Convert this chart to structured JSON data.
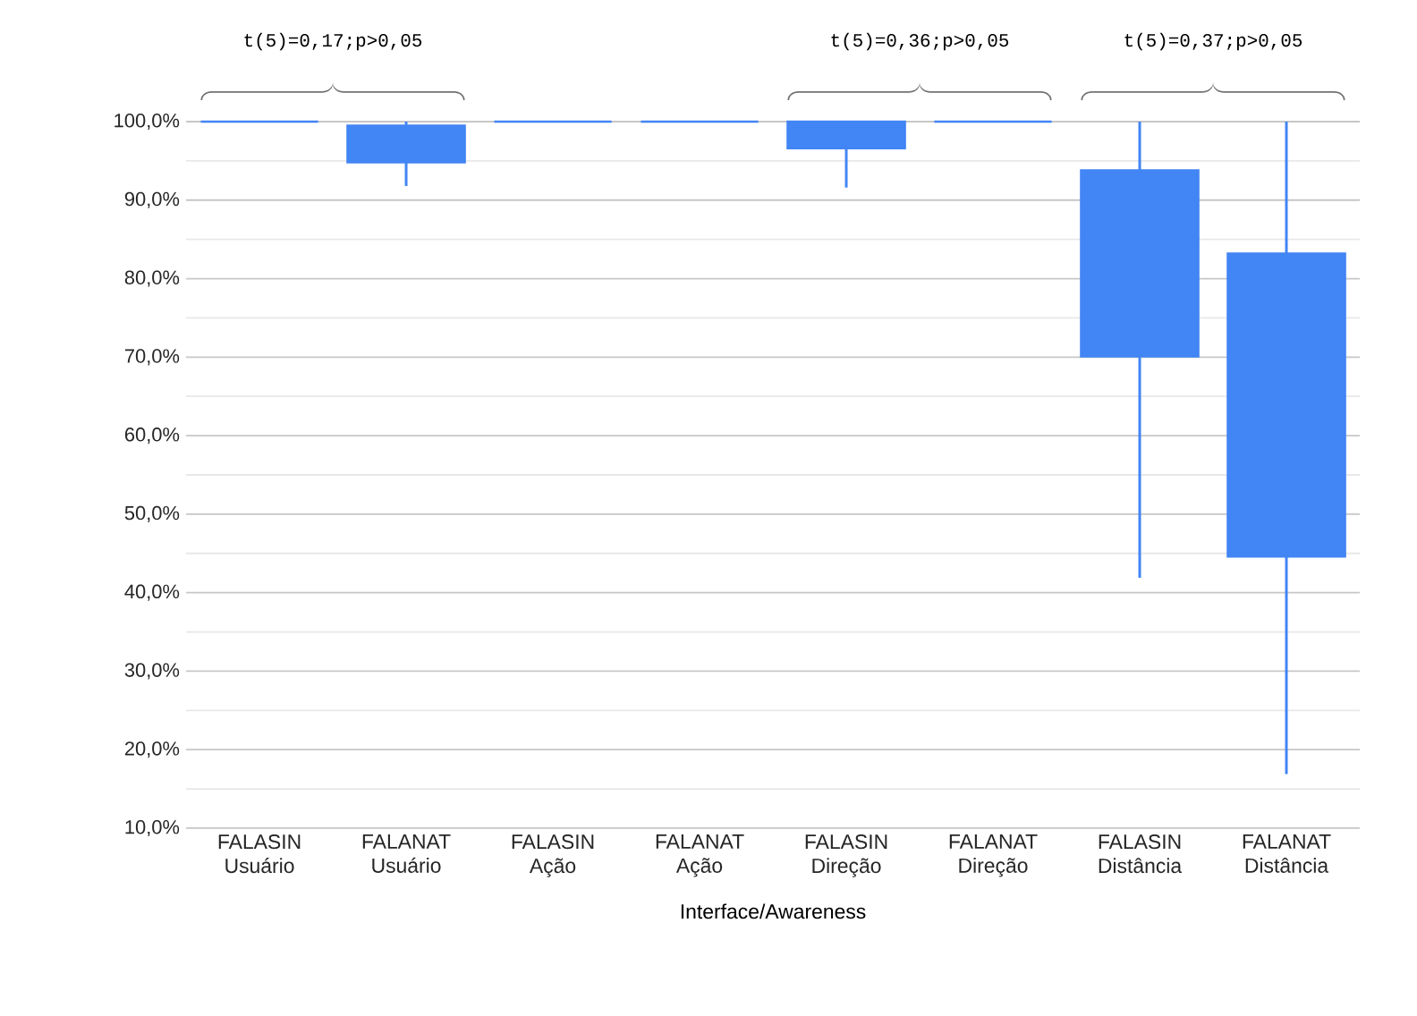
{
  "chart_data": {
    "type": "candlestick",
    "xlabel": "Interface/Awareness",
    "categories": [
      "FALASIN Usuário",
      "FALANAT Usuário",
      "FALASIN Ação",
      "FALANAT Ação",
      "FALASIN Direção",
      "FALANAT Direção",
      "FALASIN Distância",
      "FALANAT Distância"
    ],
    "ohlc": [
      [
        100,
        100,
        100,
        100
      ],
      [
        99.5,
        100,
        91.8,
        94.8
      ],
      [
        100,
        100,
        100,
        100
      ],
      [
        100,
        100,
        100,
        100
      ],
      [
        100,
        100,
        91.6,
        96.6
      ],
      [
        100,
        100,
        100,
        100
      ],
      [
        93.8,
        100,
        41.9,
        70.1
      ],
      [
        83.2,
        100,
        16.9,
        44.6
      ]
    ],
    "color": "#4285f4",
    "ylim": [
      10,
      100
    ],
    "yticks": [
      {
        "value": 10,
        "label": "10,0%"
      },
      {
        "value": 20,
        "label": "20,0%"
      },
      {
        "value": 30,
        "label": "30,0%"
      },
      {
        "value": 40,
        "label": "40,0%"
      },
      {
        "value": 50,
        "label": "50,0%"
      },
      {
        "value": 60,
        "label": "60,0%"
      },
      {
        "value": 70,
        "label": "70,0%"
      },
      {
        "value": 80,
        "label": "80,0%"
      },
      {
        "value": 90,
        "label": "90,0%"
      },
      {
        "value": 100,
        "label": "100,0%"
      }
    ],
    "grid": "y",
    "annotations": [
      "t(5)=0,17;p>0,05",
      "t(5)=0,36;p>0,05",
      "t(5)=0,37;p>0,05"
    ]
  }
}
